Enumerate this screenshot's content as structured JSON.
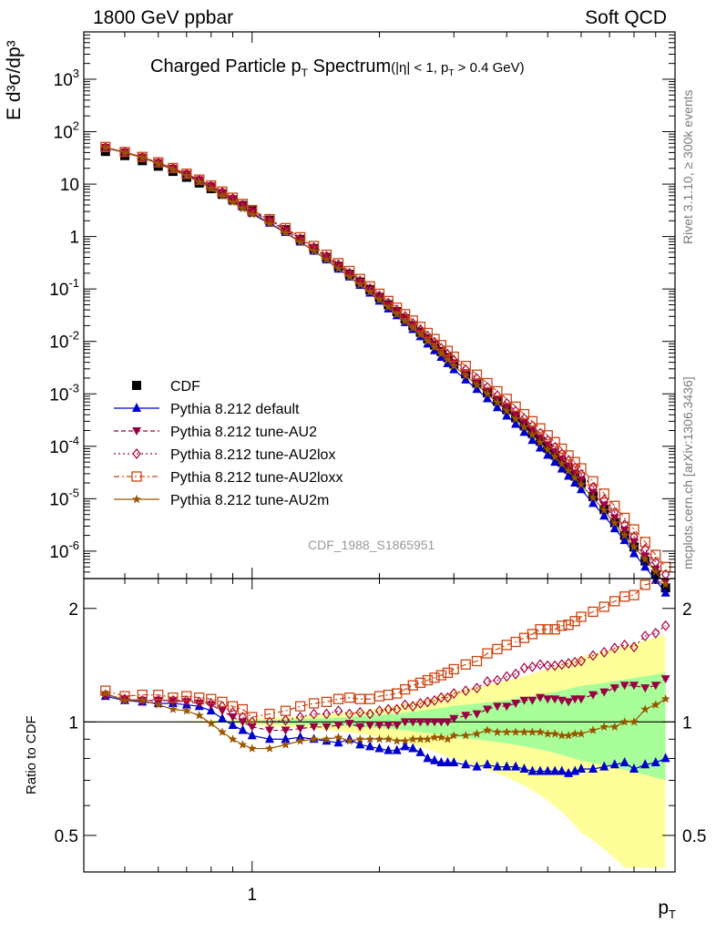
{
  "header": {
    "left": "1800 GeV ppbar",
    "right": "Soft QCD"
  },
  "side_labels": {
    "rivet": "Rivet 3.1.10, ≥ 300k events",
    "mcplots": "mcplots.cern.ch [arXiv:1306.3436]"
  },
  "plot_title": {
    "main": "Charged Particle p",
    "main_sub": "T",
    "main_tail": " Spectrum",
    "cut": "(|η| < 1, p",
    "cut_sub": "T",
    "cut_tail": " > 0.4 GeV)"
  },
  "analysis_id": "CDF_1988_S1865951",
  "axes": {
    "ylabel": "E d³σ/dp³",
    "ratio_ylabel": "Ratio to CDF",
    "xlabel": "p",
    "xlabel_sub": "T"
  },
  "legend": [
    {
      "name": "CDF",
      "color": "#000000",
      "marker": "square"
    },
    {
      "name": "Pythia 8.212 default",
      "color": "#0000cc",
      "marker": "triangle-up"
    },
    {
      "name": "Pythia 8.212 tune-AU2",
      "color": "#990044",
      "marker": "triangle-down"
    },
    {
      "name": "Pythia 8.212 tune-AU2lox",
      "color": "#aa0044",
      "marker": "diamond-open"
    },
    {
      "name": "Pythia 8.212 tune-AU2loxx",
      "color": "#cc4411",
      "marker": "square-open"
    },
    {
      "name": "Pythia 8.212 tune-AU2m",
      "color": "#995500",
      "marker": "star"
    }
  ],
  "chart_data": [
    {
      "type": "scatter",
      "title": "Charged Particle pT Spectrum (|η| < 1, pT > 0.4 GeV)",
      "xlabel": "pT",
      "ylabel": "E d³σ/dp³",
      "x_scale": "log",
      "y_scale": "log",
      "xlim": [
        0.4,
        10
      ],
      "ylim": [
        3e-07,
        8000
      ],
      "x_ticks": [
        1
      ],
      "y_ticks": [
        "10^-6",
        "10^-5",
        "10^-4",
        "10^-3",
        "10^-2",
        "10^-1",
        "1",
        "10",
        "10^2",
        "10^3"
      ],
      "legend_position": "bottom-left",
      "x": [
        0.45,
        0.5,
        0.55,
        0.6,
        0.65,
        0.7,
        0.75,
        0.8,
        0.85,
        0.9,
        0.95,
        1.0,
        1.1,
        1.2,
        1.3,
        1.4,
        1.5,
        1.6,
        1.7,
        1.8,
        1.9,
        2.0,
        2.1,
        2.2,
        2.3,
        2.4,
        2.5,
        2.6,
        2.7,
        2.8,
        2.9,
        3.0,
        3.2,
        3.4,
        3.6,
        3.8,
        4.0,
        4.2,
        4.4,
        4.6,
        4.8,
        5.0,
        5.2,
        5.4,
        5.6,
        5.8,
        6.0,
        6.4,
        6.8,
        7.2,
        7.6,
        8.0,
        8.5,
        9.0,
        9.5
      ],
      "series": [
        {
          "name": "CDF",
          "values": [
            42,
            35,
            28,
            22,
            17.5,
            13.5,
            10.5,
            8.2,
            6.4,
            5.0,
            3.9,
            3.1,
            2.05,
            1.35,
            0.88,
            0.59,
            0.4,
            0.27,
            0.19,
            0.135,
            0.097,
            0.069,
            0.05,
            0.037,
            0.027,
            0.02,
            0.015,
            0.0112,
            0.0085,
            0.0064,
            0.0049,
            0.0037,
            0.0024,
            0.0016,
            0.00105,
            0.00072,
            0.0005,
            0.00035,
            0.000245,
            0.000175,
            0.000125,
            9.2e-05,
            6.8e-05,
            5e-05,
            3.7e-05,
            2.7e-05,
            2e-05,
            1.1e-05,
            6.2e-06,
            3.5e-06,
            2e-06,
            1.2e-06,
            6.5e-07,
            3.6e-07,
            2e-07
          ]
        },
        {
          "name": "Pythia 8.212 default",
          "values": [
            49,
            40,
            32,
            25,
            19.6,
            15,
            11.6,
            8.8,
            6.5,
            4.9,
            3.7,
            2.8,
            1.8,
            1.2,
            0.79,
            0.53,
            0.36,
            0.24,
            0.17,
            0.118,
            0.084,
            0.059,
            0.042,
            0.031,
            0.023,
            0.017,
            0.0124,
            0.009,
            0.0067,
            0.005,
            0.0038,
            0.0029,
            0.00185,
            0.00122,
            0.00081,
            0.00055,
            0.00038,
            0.000265,
            0.000185,
            0.00013,
            9.3e-05,
            6.8e-05,
            5e-05,
            3.7e-05,
            2.7e-05,
            2e-05,
            1.5e-05,
            8.2e-06,
            4.7e-06,
            2.7e-06,
            1.6e-06,
            9e-07,
            5e-07,
            2.8e-07,
            1.6e-07
          ]
        },
        {
          "name": "Pythia 8.212 tune-AU2",
          "values": [
            50,
            40.5,
            32.5,
            25.5,
            20,
            15.5,
            12.0,
            9.2,
            6.9,
            5.2,
            3.9,
            3.0,
            2.0,
            1.32,
            0.87,
            0.59,
            0.4,
            0.27,
            0.19,
            0.133,
            0.095,
            0.068,
            0.049,
            0.036,
            0.027,
            0.02,
            0.015,
            0.0112,
            0.0085,
            0.0064,
            0.0049,
            0.0038,
            0.0025,
            0.00168,
            0.00114,
            0.00079,
            0.00055,
            0.00039,
            0.00028,
            0.0002,
            0.000145,
            0.000106,
            7.8e-05,
            5.7e-05,
            4.2e-05,
            3.1e-05,
            2.3e-05,
            1.3e-05,
            7.5e-06,
            4.3e-06,
            2.5e-06,
            1.5e-06,
            8e-07,
            4.5e-07,
            2.6e-07
          ]
        },
        {
          "name": "Pythia 8.212 tune-AU2lox",
          "values": [
            50,
            40.5,
            32.5,
            25.5,
            20,
            15.5,
            12.0,
            9.2,
            7.0,
            5.3,
            4.0,
            3.1,
            2.05,
            1.37,
            0.91,
            0.62,
            0.42,
            0.29,
            0.2,
            0.143,
            0.102,
            0.074,
            0.054,
            0.04,
            0.03,
            0.022,
            0.0168,
            0.0127,
            0.0097,
            0.0074,
            0.0057,
            0.0044,
            0.0029,
            0.00196,
            0.00134,
            0.00093,
            0.00066,
            0.00047,
            0.00034,
            0.000245,
            0.000178,
            0.00013,
            9.6e-05,
            7.1e-05,
            5.3e-05,
            3.9e-05,
            2.9e-05,
            1.65e-05,
            9.5e-06,
            5.5e-06,
            3.2e-06,
            1.9e-06,
            1.1e-06,
            6.2e-07,
            3.6e-07
          ]
        },
        {
          "name": "Pythia 8.212 tune-AU2loxx",
          "values": [
            51,
            41,
            33,
            26,
            20.3,
            15.8,
            12.2,
            9.4,
            7.2,
            5.5,
            4.2,
            3.2,
            2.15,
            1.45,
            0.97,
            0.66,
            0.45,
            0.31,
            0.22,
            0.155,
            0.112,
            0.081,
            0.059,
            0.044,
            0.033,
            0.025,
            0.019,
            0.0145,
            0.0111,
            0.0085,
            0.0066,
            0.0051,
            0.0034,
            0.00232,
            0.0016,
            0.00112,
            0.0008,
            0.00057,
            0.00041,
            0.0003,
            0.00022,
            0.000162,
            0.00012,
            9e-05,
            6.7e-05,
            5e-05,
            3.8e-05,
            2.15e-05,
            1.25e-05,
            7.3e-06,
            4.3e-06,
            2.6e-06,
            1.5e-06,
            8.5e-07,
            5e-07
          ]
        },
        {
          "name": "Pythia 8.212 tune-AU2m",
          "values": [
            50,
            40,
            32,
            24.5,
            18.9,
            14.4,
            10.9,
            8.1,
            6.0,
            4.5,
            3.4,
            2.65,
            1.75,
            1.17,
            0.78,
            0.53,
            0.36,
            0.245,
            0.17,
            0.121,
            0.087,
            0.062,
            0.045,
            0.033,
            0.024,
            0.018,
            0.0135,
            0.0101,
            0.0077,
            0.0058,
            0.0044,
            0.0034,
            0.00222,
            0.00148,
            0.001,
            0.00068,
            0.00047,
            0.00033,
            0.00023,
            0.000165,
            0.000118,
            8.6e-05,
            6.3e-05,
            4.6e-05,
            3.4e-05,
            2.5e-05,
            1.85e-05,
            1.04e-05,
            6e-06,
            3.4e-06,
            2e-06,
            1.2e-06,
            7e-07,
            4e-07,
            2.3e-07
          ]
        }
      ]
    },
    {
      "type": "line",
      "xlabel": "pT",
      "ylabel": "Ratio to CDF",
      "x_scale": "log",
      "y_scale": "log",
      "xlim": [
        0.4,
        10
      ],
      "ylim": [
        0.4,
        2.4
      ],
      "y_ticks": [
        0.5,
        1,
        2
      ],
      "x": [
        0.45,
        0.5,
        0.55,
        0.6,
        0.65,
        0.7,
        0.75,
        0.8,
        0.85,
        0.9,
        0.95,
        1.0,
        1.1,
        1.2,
        1.3,
        1.4,
        1.5,
        1.6,
        1.7,
        1.8,
        1.9,
        2.0,
        2.1,
        2.2,
        2.3,
        2.4,
        2.5,
        2.6,
        2.7,
        2.8,
        2.9,
        3.0,
        3.2,
        3.4,
        3.6,
        3.8,
        4.0,
        4.2,
        4.4,
        4.6,
        4.8,
        5.0,
        5.2,
        5.4,
        5.6,
        5.8,
        6.0,
        6.4,
        6.8,
        7.2,
        7.6,
        8.0,
        8.5,
        9.0,
        9.5
      ],
      "series": [
        {
          "name": "Pythia 8.212 default",
          "values": [
            1.17,
            1.14,
            1.13,
            1.12,
            1.12,
            1.11,
            1.1,
            1.07,
            1.02,
            0.98,
            0.95,
            0.92,
            0.9,
            0.9,
            0.91,
            0.9,
            0.89,
            0.88,
            0.9,
            0.87,
            0.86,
            0.85,
            0.84,
            0.84,
            0.86,
            0.85,
            0.83,
            0.8,
            0.79,
            0.78,
            0.78,
            0.78,
            0.77,
            0.76,
            0.77,
            0.76,
            0.76,
            0.76,
            0.75,
            0.74,
            0.74,
            0.74,
            0.74,
            0.74,
            0.73,
            0.74,
            0.75,
            0.75,
            0.76,
            0.77,
            0.78,
            0.75,
            0.77,
            0.78,
            0.8
          ]
        },
        {
          "name": "Pythia 8.212 tune-AU2",
          "values": [
            1.18,
            1.15,
            1.14,
            1.14,
            1.14,
            1.13,
            1.12,
            1.11,
            1.07,
            1.03,
            1.0,
            0.97,
            0.95,
            0.95,
            0.96,
            0.97,
            0.97,
            0.98,
            0.99,
            0.97,
            0.98,
            0.98,
            0.98,
            0.98,
            1.0,
            1.0,
            1.0,
            1.0,
            1.0,
            1.0,
            1.0,
            1.02,
            1.04,
            1.05,
            1.08,
            1.1,
            1.1,
            1.12,
            1.14,
            1.14,
            1.16,
            1.15,
            1.15,
            1.14,
            1.13,
            1.15,
            1.15,
            1.18,
            1.2,
            1.23,
            1.25,
            1.25,
            1.23,
            1.25,
            1.3
          ]
        },
        {
          "name": "Pythia 8.212 tune-AU2lox",
          "values": [
            1.18,
            1.15,
            1.14,
            1.14,
            1.14,
            1.14,
            1.13,
            1.12,
            1.1,
            1.06,
            1.03,
            1.0,
            1.0,
            1.01,
            1.03,
            1.05,
            1.05,
            1.07,
            1.05,
            1.06,
            1.05,
            1.07,
            1.08,
            1.08,
            1.11,
            1.1,
            1.12,
            1.13,
            1.14,
            1.16,
            1.16,
            1.19,
            1.21,
            1.23,
            1.28,
            1.29,
            1.32,
            1.34,
            1.39,
            1.4,
            1.42,
            1.41,
            1.41,
            1.42,
            1.43,
            1.44,
            1.45,
            1.5,
            1.53,
            1.57,
            1.6,
            1.58,
            1.69,
            1.72,
            1.8
          ]
        },
        {
          "name": "Pythia 8.212 tune-AU2loxx",
          "values": [
            1.21,
            1.17,
            1.18,
            1.18,
            1.16,
            1.17,
            1.16,
            1.15,
            1.13,
            1.1,
            1.08,
            1.03,
            1.05,
            1.07,
            1.1,
            1.12,
            1.13,
            1.15,
            1.16,
            1.15,
            1.15,
            1.17,
            1.18,
            1.19,
            1.22,
            1.25,
            1.27,
            1.29,
            1.31,
            1.33,
            1.35,
            1.38,
            1.42,
            1.45,
            1.52,
            1.56,
            1.6,
            1.63,
            1.67,
            1.71,
            1.76,
            1.76,
            1.76,
            1.8,
            1.81,
            1.85,
            1.9,
            1.96,
            2.02,
            2.09,
            2.15,
            2.17,
            2.31,
            2.36,
            2.5
          ]
        },
        {
          "name": "Pythia 8.212 tune-AU2m",
          "values": [
            1.19,
            1.14,
            1.14,
            1.11,
            1.08,
            1.07,
            1.04,
            0.99,
            0.94,
            0.9,
            0.87,
            0.85,
            0.85,
            0.87,
            0.89,
            0.9,
            0.9,
            0.91,
            0.89,
            0.9,
            0.9,
            0.9,
            0.9,
            0.89,
            0.89,
            0.9,
            0.9,
            0.9,
            0.91,
            0.91,
            0.9,
            0.92,
            0.92,
            0.93,
            0.95,
            0.94,
            0.94,
            0.94,
            0.94,
            0.94,
            0.94,
            0.93,
            0.93,
            0.92,
            0.92,
            0.93,
            0.93,
            0.95,
            0.97,
            0.97,
            1.0,
            1.0,
            1.08,
            1.11,
            1.15
          ]
        }
      ]
    }
  ]
}
